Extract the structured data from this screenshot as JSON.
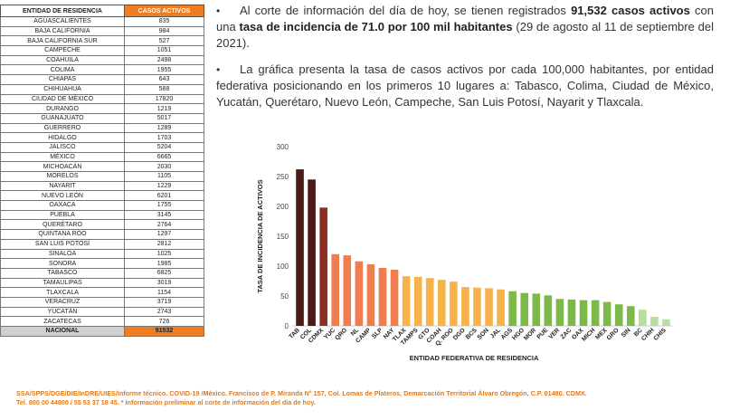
{
  "table": {
    "headers": [
      "ENTIDAD DE RESIDENCIA",
      "CASOS ACTIVOS"
    ],
    "rows": [
      [
        "AGUASCALIENTES",
        "835"
      ],
      [
        "BAJA CALIFORNIA",
        "984"
      ],
      [
        "BAJA CALIFORNIA SUR",
        "527"
      ],
      [
        "CAMPECHE",
        "1051"
      ],
      [
        "COAHUILA",
        "2498"
      ],
      [
        "COLIMA",
        "1955"
      ],
      [
        "CHIAPAS",
        "643"
      ],
      [
        "CHIHUAHUA",
        "588"
      ],
      [
        "CIUDAD DE MÉXICO",
        "17820"
      ],
      [
        "DURANGO",
        "1219"
      ],
      [
        "GUANAJUATO",
        "5017"
      ],
      [
        "GUERRERO",
        "1289"
      ],
      [
        "HIDALGO",
        "1703"
      ],
      [
        "JALISCO",
        "5204"
      ],
      [
        "MÉXICO",
        "6665"
      ],
      [
        "MICHOACÁN",
        "2030"
      ],
      [
        "MORELOS",
        "1105"
      ],
      [
        "NAYARIT",
        "1229"
      ],
      [
        "NUEVO LEÓN",
        "6201"
      ],
      [
        "OAXACA",
        "1755"
      ],
      [
        "PUEBLA",
        "3145"
      ],
      [
        "QUERÉTARO",
        "2764"
      ],
      [
        "QUINTANA ROO",
        "1297"
      ],
      [
        "SAN LUIS POTOSÍ",
        "2812"
      ],
      [
        "SINALOA",
        "1025"
      ],
      [
        "SONORA",
        "1985"
      ],
      [
        "TABASCO",
        "6825"
      ],
      [
        "TAMAULIPAS",
        "3019"
      ],
      [
        "TLAXCALA",
        "1154"
      ],
      [
        "VERACRUZ",
        "3719"
      ],
      [
        "YUCATÁN",
        "2743"
      ],
      [
        "ZACATECAS",
        "726"
      ]
    ],
    "total": [
      "NACIONAL",
      "91532"
    ]
  },
  "text": {
    "bullet_symbol": "•",
    "p1_a": "Al corte de información del día de hoy, se tienen registrados ",
    "p1_b": "91,532 casos activos",
    "p1_c": " con una ",
    "p1_d": "tasa de incidencia de 71.0 por 100 mil habitantes",
    "p1_e": " (29 de agosto al 11 de septiembre del 2021).",
    "p2": "La gráfica presenta la tasa de casos activos por cada 100,000 habitantes, por entidad federativa posicionando en los primeros 10 lugares a: Tabasco, Colima, Ciudad de México, Yucatán, Querétaro, Nuevo León, Campeche, San Luis Potosí, Nayarit y Tlaxcala."
  },
  "chart_data": {
    "type": "bar",
    "xlabel": "ENTIDAD FEDERATIVA DE RESIDENCIA",
    "ylabel": "TASA DE INCIDENCIA DE ACTIVOS",
    "ylim": [
      0,
      300
    ],
    "yticks": [
      "0",
      "50",
      "100",
      "150",
      "200",
      "250",
      "300"
    ],
    "grid": false,
    "categories": [
      "TAB",
      "COL",
      "CDMX",
      "YUC",
      "QRO",
      "NL",
      "CAMP",
      "SLP",
      "NAY",
      "TLAX",
      "TAMPS",
      "GTO",
      "COAH",
      "Q. ROO",
      "DGO",
      "BCS",
      "SON",
      "JAL",
      "AGS",
      "HGO",
      "MOR",
      "PUE",
      "VER",
      "ZAC",
      "OAX",
      "MICH",
      "MEX",
      "GRO",
      "SIN",
      "BC",
      "CHIH",
      "CHIS"
    ],
    "values": [
      262,
      245,
      198,
      120,
      118,
      108,
      103,
      97,
      94,
      83,
      82,
      80,
      77,
      74,
      65,
      64,
      63,
      61,
      58,
      55,
      54,
      51,
      45,
      44,
      43,
      43,
      40,
      36,
      33,
      27,
      15,
      11
    ],
    "colors": [
      "#4a1b16",
      "#4a1b16",
      "#8e2f24",
      "#ef7d50",
      "#ef7d50",
      "#ef7d50",
      "#ef7d50",
      "#ef7d50",
      "#ef7d50",
      "#f7b24a",
      "#f7b24a",
      "#f7b24a",
      "#f7b24a",
      "#f7b24a",
      "#f7b24a",
      "#f7b24a",
      "#f7b24a",
      "#f7b24a",
      "#7cb84a",
      "#7cb84a",
      "#7cb84a",
      "#7cb84a",
      "#7cb84a",
      "#7cb84a",
      "#7cb84a",
      "#7cb84a",
      "#7cb84a",
      "#7cb84a",
      "#7cb84a",
      "#b9dca0",
      "#b9dca0",
      "#b9dca0"
    ]
  },
  "footer": {
    "line1": "SSA/SPPS/DGE/DIE/InDRE/UIES/Informe técnico. COVID-19 /México. Francisco de P. Miranda N° 157, Col. Lomas de Plateros, Demarcación Territorial Álvaro Obregón, C.P. 01480. CDMX.",
    "line2": "Tel. 800 00 44800 / 55 53 37 18 45. * Información preliminar al corte de información del día de hoy."
  }
}
